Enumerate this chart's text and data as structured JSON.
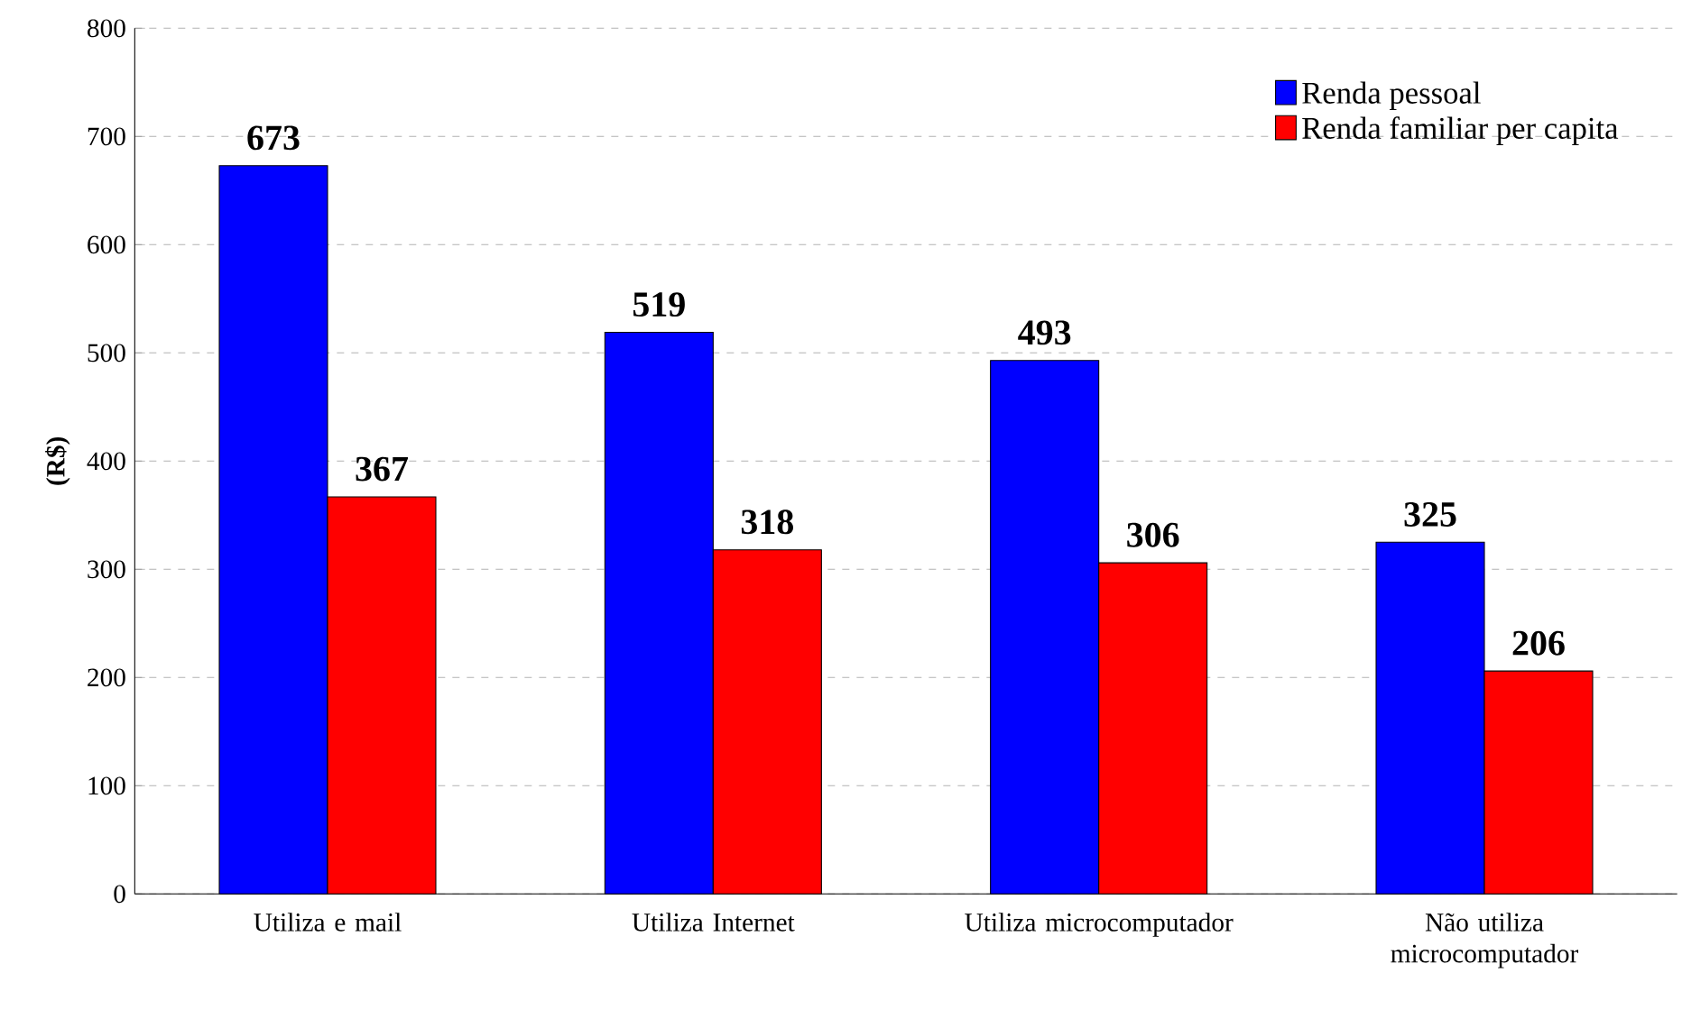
{
  "chart_data": {
    "type": "bar",
    "ylabel": "(R$)",
    "categories": [
      "Utiliza e mail",
      "Utiliza Internet",
      "Utiliza microcomputador",
      "Não utiliza microcomputador"
    ],
    "series": [
      {
        "name": "Renda pessoal",
        "color": "#0000ff",
        "values": [
          673,
          519,
          493,
          325
        ]
      },
      {
        "name": "Renda familiar per capita",
        "color": "#ff0000",
        "values": [
          367,
          318,
          306,
          206
        ]
      }
    ],
    "ylim": [
      0,
      800
    ],
    "yticks": [
      0,
      100,
      200,
      300,
      400,
      500,
      600,
      700,
      800
    ],
    "grid": "y",
    "legend": "top right",
    "data_labels": true
  }
}
